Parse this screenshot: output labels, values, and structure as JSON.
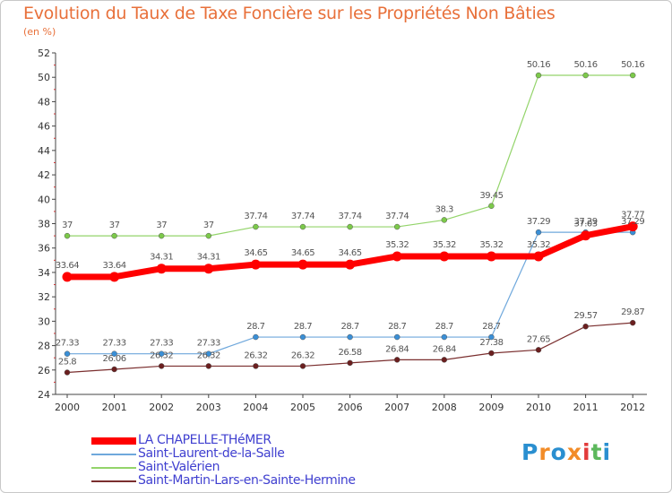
{
  "chart_data": {
    "type": "line",
    "title": "Evolution du Taux de Taxe Foncière sur les Propriétés Non Bâties",
    "subtitle": "(en %)",
    "xlabel": "",
    "ylabel": "",
    "x": [
      "2000",
      "2001",
      "2002",
      "2003",
      "2004",
      "2005",
      "2006",
      "2007",
      "2008",
      "2009",
      "2010",
      "2011",
      "2012"
    ],
    "ylim": [
      24,
      52
    ],
    "yticks": [
      "24",
      "26",
      "28",
      "30",
      "32",
      "34",
      "36",
      "38",
      "40",
      "42",
      "44",
      "46",
      "48",
      "50",
      "52"
    ],
    "grid": false,
    "legend_position": "bottom-left",
    "series": [
      {
        "name": "LA CHAPELLE-THéMER",
        "color": "#ff0000",
        "values": [
          33.64,
          33.64,
          34.31,
          34.31,
          34.65,
          34.65,
          34.65,
          35.32,
          35.32,
          35.32,
          35.32,
          37.03,
          37.77
        ],
        "labels": [
          "33.64",
          "33.64",
          "34.31",
          "34.31",
          "34.65",
          "34.65",
          "34.65",
          "35.32",
          "35.32",
          "35.32",
          "35.32",
          "37.03",
          "37.77"
        ]
      },
      {
        "name": "Saint-Laurent-de-la-Salle",
        "color": "#6fa8dc",
        "values": [
          27.33,
          27.33,
          27.33,
          27.33,
          28.7,
          28.7,
          28.7,
          28.7,
          28.7,
          28.7,
          37.29,
          37.29,
          37.29
        ],
        "labels": [
          "27.33",
          "27.33",
          "27.33",
          "27.33",
          "28.7",
          "28.7",
          "28.7",
          "28.7",
          "28.7",
          "28.7",
          "37.29",
          "37.29",
          "37.29"
        ]
      },
      {
        "name": "Saint-Valérien",
        "color": "#93d46a",
        "values": [
          37,
          37,
          37,
          37,
          37.74,
          37.74,
          37.74,
          37.74,
          38.3,
          39.45,
          50.16,
          50.16,
          50.16
        ],
        "labels": [
          "37",
          "37",
          "37",
          "37",
          "37.74",
          "37.74",
          "37.74",
          "37.74",
          "38.3",
          "39.45",
          "50.16",
          "50.16",
          "50.16"
        ]
      },
      {
        "name": "Saint-Martin-Lars-en-Sainte-Hermine",
        "color": "#7a2e2e",
        "values": [
          25.8,
          26.06,
          26.32,
          26.32,
          26.32,
          26.32,
          26.58,
          26.84,
          26.84,
          27.38,
          27.65,
          29.57,
          29.87
        ],
        "labels": [
          "25.8",
          "26.06",
          "26.32",
          "26.32",
          "26.32",
          "26.32",
          "26.58",
          "26.84",
          "26.84",
          "27.38",
          "27.65",
          "29.57",
          "29.87"
        ]
      }
    ]
  },
  "legend": {
    "items": [
      {
        "label": "LA CHAPELLE-THéMER",
        "color": "#ff0000"
      },
      {
        "label": "Saint-Laurent-de-la-Salle",
        "color": "#6fa8dc"
      },
      {
        "label": "Saint-Valérien",
        "color": "#93d46a"
      },
      {
        "label": "Saint-Martin-Lars-en-Sainte-Hermine",
        "color": "#7a2e2e"
      }
    ]
  },
  "logo": {
    "letters": [
      "P",
      "r",
      "o",
      "x",
      "i",
      "t",
      "i"
    ],
    "colors": [
      "#2a8fd0",
      "#f28c28",
      "#2a8fd0",
      "#f28c28",
      "#e23b3b",
      "#5cb85c",
      "#2a8fd0"
    ]
  }
}
